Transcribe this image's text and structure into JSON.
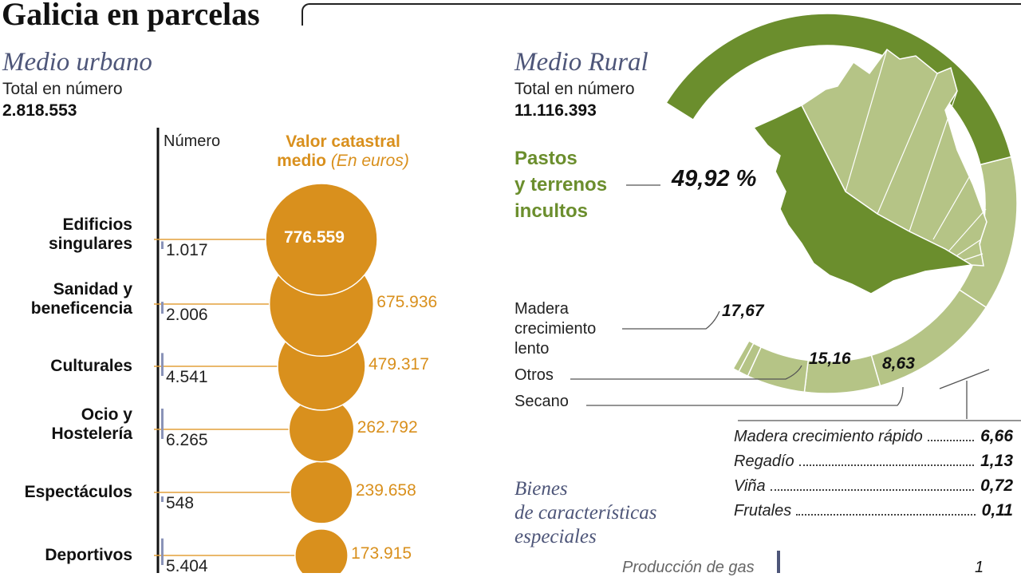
{
  "title": "Galicia en parcelas",
  "urban": {
    "heading": "Medio urbano",
    "total_label": "Total en número",
    "total_value": "2.818.553",
    "col_number": "Número",
    "col_value_line1": "Valor catastral",
    "col_value_bold2": "medio",
    "col_value_unit": "(En euros)"
  },
  "rural": {
    "heading": "Medio Rural",
    "total_label": "Total en número",
    "total_value": "11.116.393",
    "pastos_label": [
      "Pastos",
      "y terrenos",
      "incultos"
    ],
    "labels": {
      "madera_lento": [
        "Madera",
        "crecimiento",
        "lento"
      ],
      "otros": "Otros",
      "secano": "Secano"
    }
  },
  "bienes": {
    "heading": [
      "Bienes",
      "de características",
      "especiales"
    ],
    "gas_label": "Producción de gas",
    "gas_value": "1"
  },
  "colors": {
    "orange": "#d9901d",
    "orange_text": "#e3a13c",
    "green_dark": "#6b8e2d",
    "green_light": "#b5c486",
    "navy": "#4e5679"
  },
  "chart_data": [
    {
      "type": "bubble",
      "title": "Medio urbano",
      "categories": [
        "Edificios singulares",
        "Sanidad y beneficencia",
        "Culturales",
        "Ocio y Hostelería",
        "Espectáculos",
        "Deportivos"
      ],
      "category_lines": [
        [
          "Edificios",
          "singulares"
        ],
        [
          "Sanidad y",
          "beneficencia"
        ],
        [
          "Culturales"
        ],
        [
          "Ocio y",
          "Hostelería"
        ],
        [
          "Espectáculos"
        ],
        [
          "Deportivos"
        ]
      ],
      "numbers": [
        1017,
        2006,
        4541,
        6265,
        548,
        5404
      ],
      "number_labels": [
        "1.017",
        "2.006",
        "4.541",
        "6.265",
        "548",
        "5.404"
      ],
      "values": [
        776559,
        675936,
        479317,
        262792,
        239658,
        173915
      ],
      "value_labels": [
        "776.559",
        "675.936",
        "479.317",
        "262.792",
        "239.658",
        "173.915"
      ],
      "xlabel": "Número",
      "ylabel": "Valor catastral medio (En euros)"
    },
    {
      "type": "pie",
      "title": "Medio Rural",
      "categories": [
        "Pastos y terrenos incultos",
        "Madera crecimiento lento",
        "Otros",
        "Secano",
        "Madera crecimiento rápido",
        "Regadío",
        "Viña",
        "Frutales"
      ],
      "values": [
        49.92,
        17.67,
        15.16,
        8.63,
        6.66,
        1.13,
        0.72,
        0.11
      ],
      "value_labels": [
        "49,92 %",
        "17,67",
        "15,16",
        "8,63",
        "6,66",
        "1,13",
        "0,72",
        "0,11"
      ],
      "unit": "%"
    }
  ]
}
